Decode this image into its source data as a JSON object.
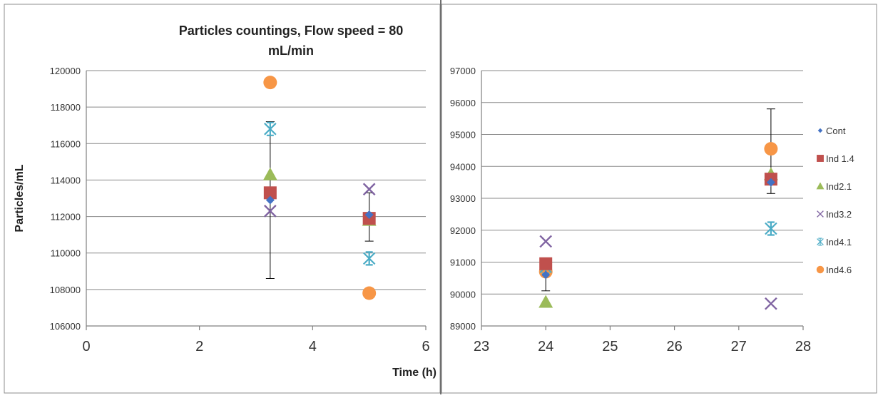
{
  "chart_data": [
    {
      "type": "scatter",
      "title": "Particles countings, Flow speed = 80 mL/min",
      "title_lines": [
        "Particles countings, Flow speed = 80",
        "mL/min"
      ],
      "xlabel": "Time (h)",
      "ylabel": "Particles/mL",
      "xlim": [
        0,
        6
      ],
      "ylim": [
        106000,
        120000
      ],
      "x_ticks": [
        0,
        2,
        4,
        6
      ],
      "y_ticks": [
        106000,
        108000,
        110000,
        112000,
        114000,
        116000,
        118000,
        120000
      ],
      "grid": "horizontal",
      "series": [
        {
          "name": "Cont",
          "marker": "diamond",
          "color": "#4472C4",
          "points": [
            {
              "x": 3.25,
              "y": 112900,
              "err_low": 108600,
              "err_high": 117200
            },
            {
              "x": 5.0,
              "y": 112100,
              "err_low": 110650,
              "err_high": 113300
            }
          ]
        },
        {
          "name": "Ind 1.4",
          "marker": "square",
          "color": "#C0504D",
          "points": [
            {
              "x": 3.25,
              "y": 113300
            },
            {
              "x": 5.0,
              "y": 111900
            }
          ]
        },
        {
          "name": "Ind2.1",
          "marker": "triangle",
          "color": "#9BBB59",
          "points": [
            {
              "x": 3.25,
              "y": 114300
            },
            {
              "x": 5.0,
              "y": 111800
            }
          ]
        },
        {
          "name": "Ind3.2",
          "marker": "x",
          "color": "#8064A2",
          "points": [
            {
              "x": 3.25,
              "y": 112300
            },
            {
              "x": 5.0,
              "y": 113500
            }
          ]
        },
        {
          "name": "Ind4.1",
          "marker": "star",
          "color": "#4BACC6",
          "points": [
            {
              "x": 3.25,
              "y": 116800
            },
            {
              "x": 5.0,
              "y": 109700
            }
          ]
        },
        {
          "name": "Ind4.6",
          "marker": "circle",
          "color": "#F79646",
          "points": [
            {
              "x": 3.25,
              "y": 119350
            },
            {
              "x": 5.0,
              "y": 107800
            }
          ]
        }
      ]
    },
    {
      "type": "scatter",
      "title": "",
      "xlabel": "",
      "ylabel": "",
      "xlim": [
        23,
        28
      ],
      "ylim": [
        89000,
        97000
      ],
      "x_ticks": [
        23,
        24,
        25,
        26,
        27,
        28
      ],
      "y_ticks": [
        89000,
        90000,
        91000,
        92000,
        93000,
        94000,
        95000,
        96000,
        97000
      ],
      "grid": "horizontal",
      "legend": "right",
      "series": [
        {
          "name": "Cont",
          "marker": "diamond",
          "color": "#4472C4",
          "points": [
            {
              "x": 24,
              "y": 90600,
              "err_low": 90100,
              "err_high": 91100
            },
            {
              "x": 27.5,
              "y": 93500,
              "err_low": 93150,
              "err_high": 95800
            }
          ]
        },
        {
          "name": "Ind 1.4",
          "marker": "square",
          "color": "#C0504D",
          "points": [
            {
              "x": 24,
              "y": 90950
            },
            {
              "x": 27.5,
              "y": 93600
            }
          ]
        },
        {
          "name": "Ind2.1",
          "marker": "triangle",
          "color": "#9BBB59",
          "points": [
            {
              "x": 24,
              "y": 89750
            },
            {
              "x": 27.5,
              "y": 93750
            }
          ]
        },
        {
          "name": "Ind3.2",
          "marker": "x",
          "color": "#8064A2",
          "points": [
            {
              "x": 24,
              "y": 91650
            },
            {
              "x": 27.5,
              "y": 89700
            }
          ]
        },
        {
          "name": "Ind4.1",
          "marker": "star",
          "color": "#4BACC6",
          "points": [
            {
              "x": 24,
              "y": 90850
            },
            {
              "x": 27.5,
              "y": 92050
            }
          ]
        },
        {
          "name": "Ind4.6",
          "marker": "circle",
          "color": "#F79646",
          "points": [
            {
              "x": 24,
              "y": 90700
            },
            {
              "x": 27.5,
              "y": 94550
            }
          ]
        }
      ]
    }
  ]
}
